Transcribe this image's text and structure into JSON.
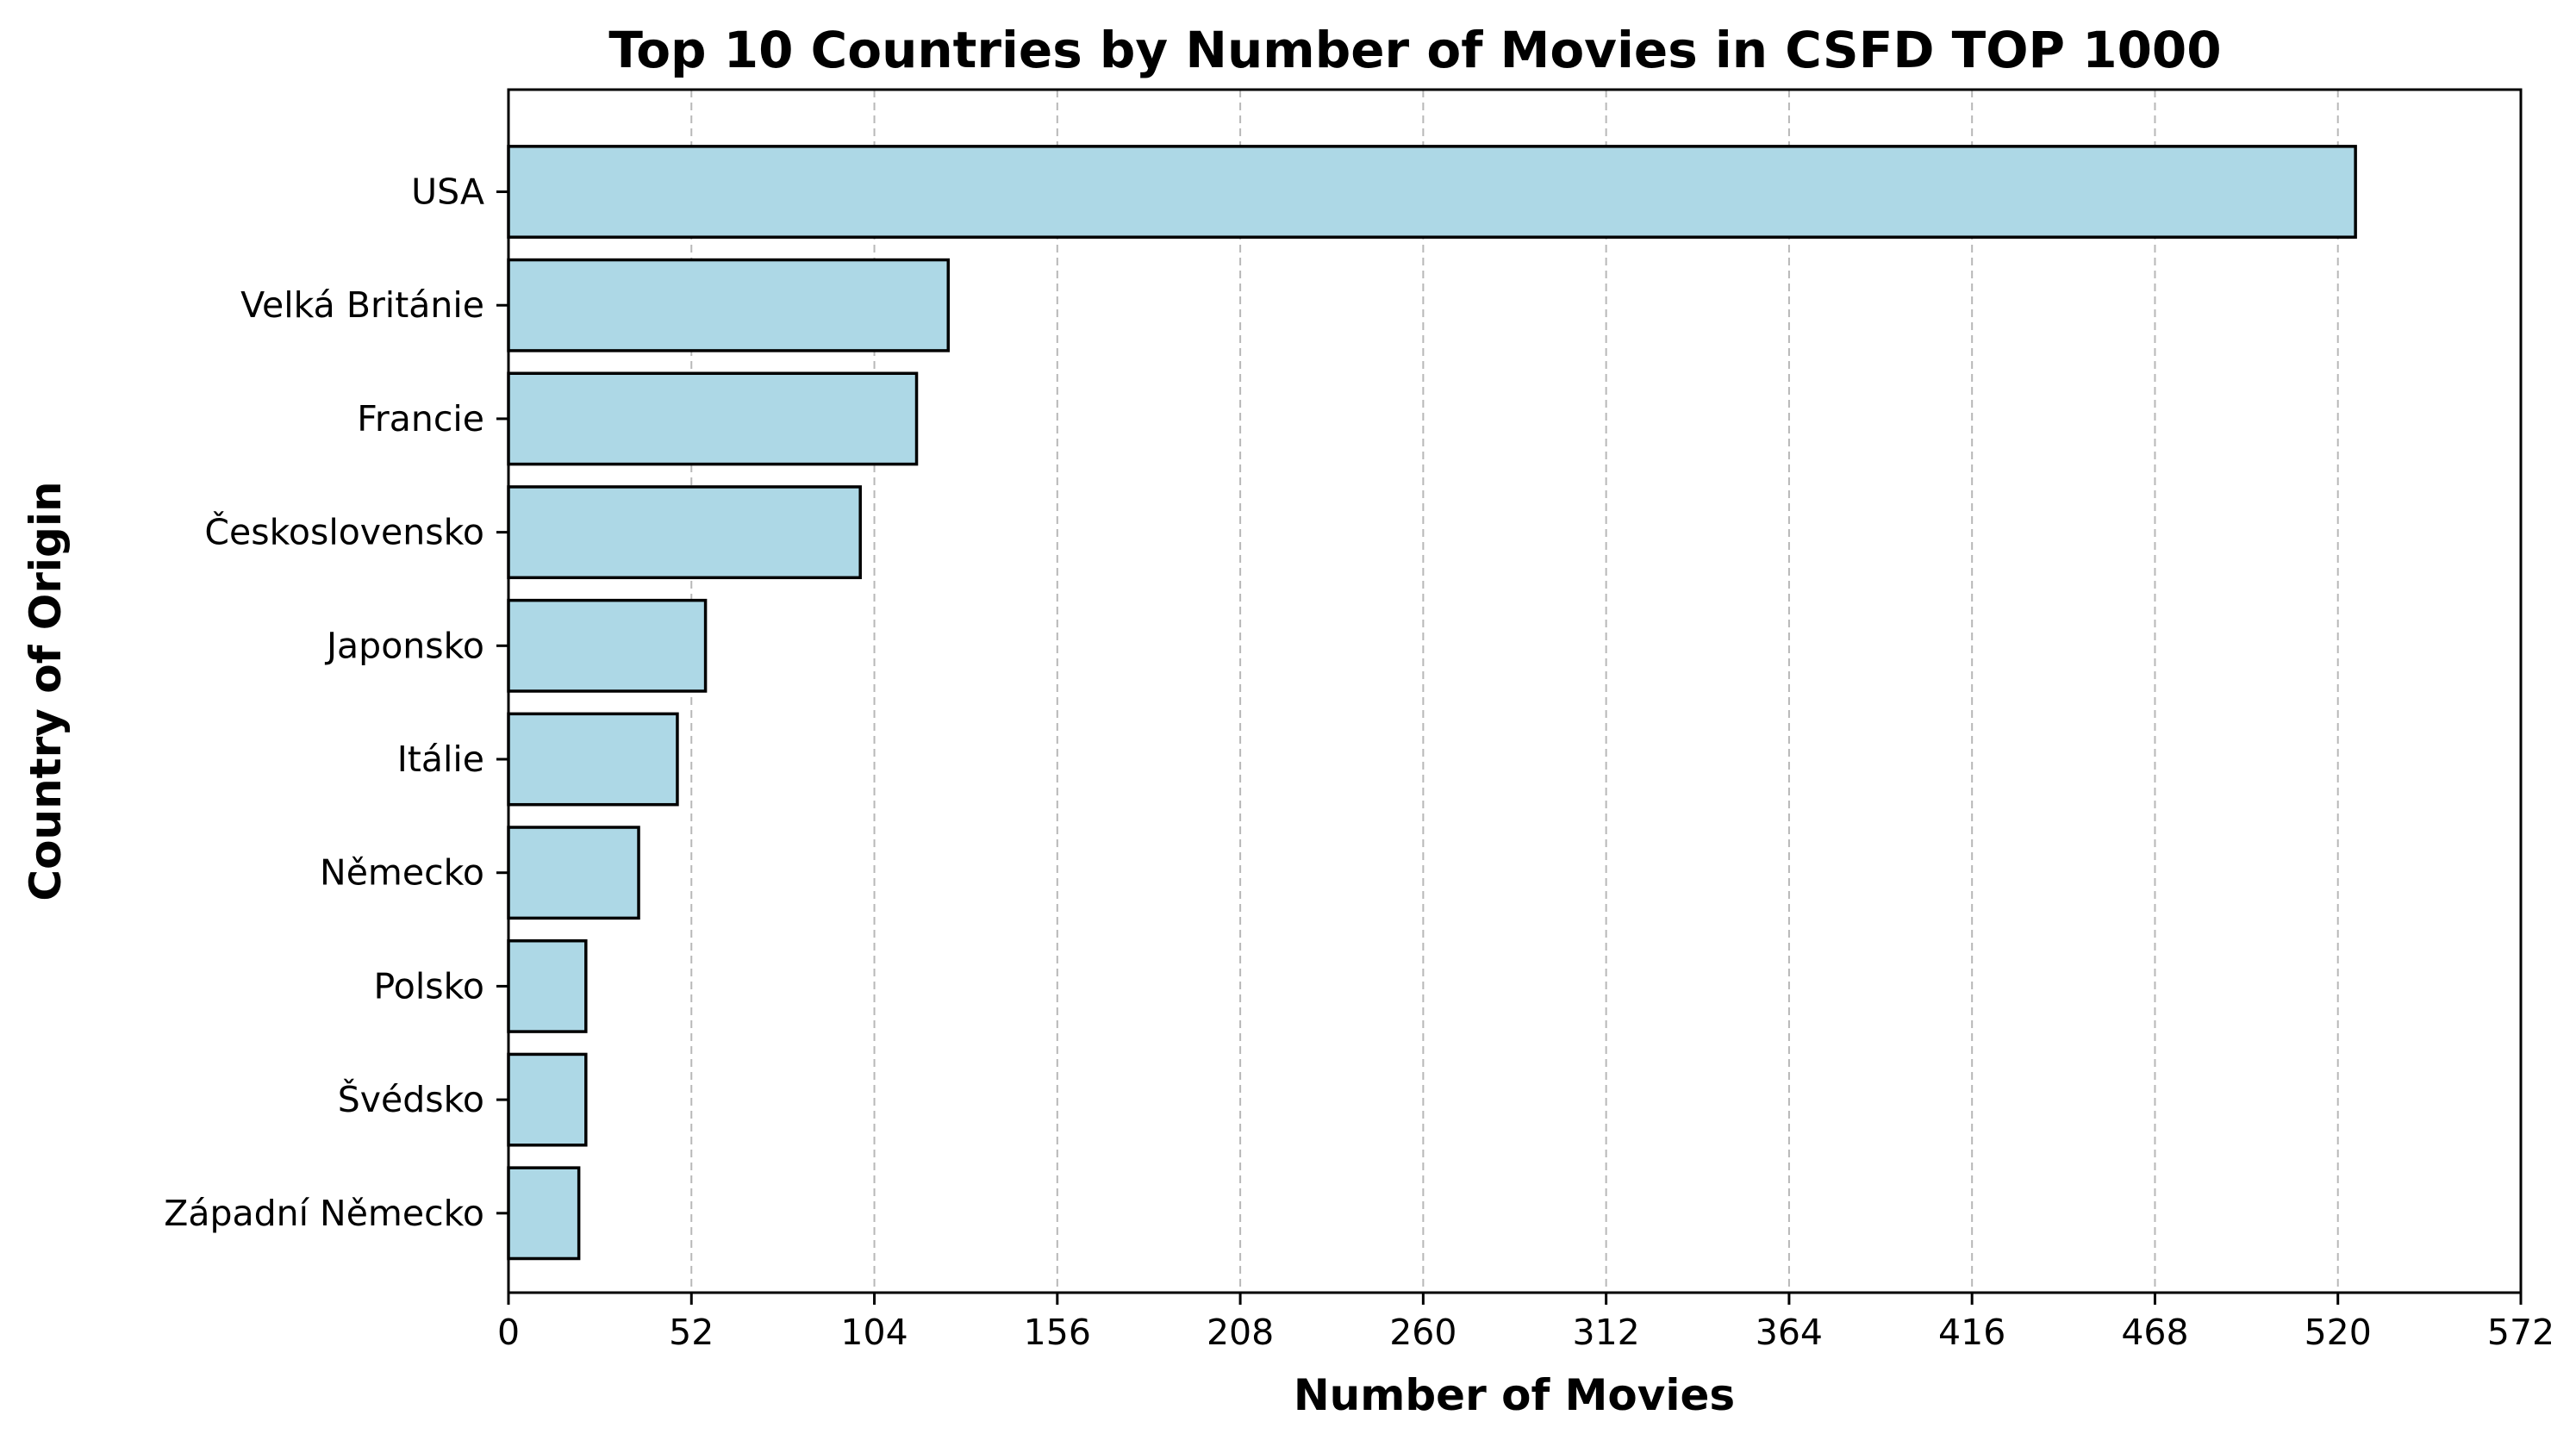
{
  "chart_data": {
    "type": "bar",
    "orientation": "horizontal",
    "title": "Top 10 Countries by Number of Movies in CSFD TOP 1000",
    "xlabel": "Number of Movies",
    "ylabel": "Country of Origin",
    "categories": [
      "USA",
      "Velká Británie",
      "Francie",
      "Československo",
      "Japonsko",
      "Itálie",
      "Německo",
      "Polsko",
      "Švédsko",
      "Západní Německo"
    ],
    "values": [
      525,
      125,
      116,
      100,
      56,
      48,
      37,
      22,
      22,
      20
    ],
    "xlim": [
      0,
      572
    ],
    "xticks": [
      "0",
      "52",
      "104",
      "156",
      "208",
      "260",
      "312",
      "364",
      "416",
      "468",
      "520",
      "572"
    ],
    "grid": "x-axis dashed",
    "legend": "none",
    "bar_color": "#add8e6",
    "edge_color": "#000000"
  }
}
